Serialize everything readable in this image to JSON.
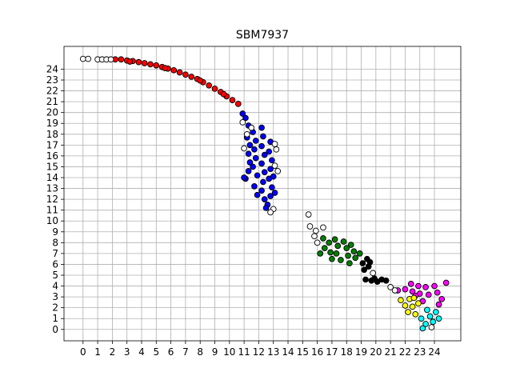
{
  "chart_data": {
    "type": "scatter",
    "title": "SBM7937",
    "xlabel": "",
    "ylabel": "",
    "xlim": [
      -1.3,
      25.8
    ],
    "ylim": [
      -1.05,
      26.1
    ],
    "xticks": [
      0,
      1,
      2,
      3,
      4,
      5,
      6,
      7,
      8,
      9,
      10,
      11,
      12,
      13,
      14,
      15,
      16,
      17,
      18,
      19,
      20,
      21,
      22,
      23,
      24
    ],
    "yticks": [
      0,
      1,
      2,
      3,
      4,
      5,
      6,
      7,
      8,
      9,
      10,
      11,
      12,
      13,
      14,
      15,
      16,
      17,
      18,
      19,
      20,
      21,
      22,
      23,
      24
    ],
    "grid": true,
    "legend": "none",
    "marker": "circle",
    "series": [
      {
        "color": "#ff0000",
        "points": [
          [
            2.2,
            24.9
          ],
          [
            2.6,
            24.9
          ],
          [
            3.0,
            24.8
          ],
          [
            3.4,
            24.75
          ],
          [
            3.8,
            24.65
          ],
          [
            4.2,
            24.55
          ],
          [
            4.6,
            24.45
          ],
          [
            5.0,
            24.35
          ],
          [
            5.4,
            24.2
          ],
          [
            5.8,
            24.05
          ],
          [
            6.2,
            23.9
          ],
          [
            6.6,
            23.7
          ],
          [
            7.0,
            23.5
          ],
          [
            7.4,
            23.3
          ],
          [
            7.8,
            23.1
          ],
          [
            8.2,
            22.8
          ],
          [
            8.6,
            22.5
          ],
          [
            9.0,
            22.2
          ],
          [
            9.4,
            21.9
          ],
          [
            9.8,
            21.5
          ],
          [
            10.2,
            21.15
          ],
          [
            10.6,
            20.8
          ],
          [
            3.2,
            24.7
          ],
          [
            5.6,
            24.1
          ],
          [
            8.0,
            22.95
          ],
          [
            9.6,
            21.7
          ]
        ]
      },
      {
        "color": "#0000ff",
        "points": [
          [
            11.1,
            19.5
          ],
          [
            11.3,
            18.8
          ],
          [
            11.2,
            17.7
          ],
          [
            11.4,
            17.0
          ],
          [
            11.3,
            16.2
          ],
          [
            11.4,
            15.4
          ],
          [
            11.3,
            14.6
          ],
          [
            11.1,
            13.9
          ],
          [
            11.6,
            18.2
          ],
          [
            11.8,
            17.4
          ],
          [
            11.7,
            16.6
          ],
          [
            11.8,
            15.8
          ],
          [
            11.6,
            15.0
          ],
          [
            11.9,
            14.2
          ],
          [
            11.7,
            13.2
          ],
          [
            11.9,
            12.4
          ],
          [
            12.2,
            18.6
          ],
          [
            12.3,
            17.8
          ],
          [
            12.2,
            16.9
          ],
          [
            12.4,
            16.1
          ],
          [
            12.2,
            15.3
          ],
          [
            12.4,
            14.5
          ],
          [
            12.3,
            13.6
          ],
          [
            12.2,
            12.8
          ],
          [
            12.4,
            12.0
          ],
          [
            12.8,
            17.3
          ],
          [
            12.7,
            16.4
          ],
          [
            12.9,
            15.6
          ],
          [
            12.8,
            14.8
          ],
          [
            12.7,
            13.9
          ],
          [
            12.9,
            13.1
          ],
          [
            12.8,
            12.3
          ],
          [
            12.6,
            11.5
          ],
          [
            13.1,
            12.6
          ],
          [
            13.0,
            14.1
          ],
          [
            11.0,
            14.0
          ],
          [
            10.9,
            19.9
          ],
          [
            12.5,
            11.2
          ]
        ]
      },
      {
        "color": "#008000",
        "points": [
          [
            16.4,
            8.4
          ],
          [
            16.8,
            8.0
          ],
          [
            16.5,
            7.5
          ],
          [
            16.9,
            7.1
          ],
          [
            17.2,
            8.3
          ],
          [
            17.4,
            7.7
          ],
          [
            17.3,
            7.0
          ],
          [
            17.6,
            6.4
          ],
          [
            17.8,
            8.1
          ],
          [
            18.0,
            7.5
          ],
          [
            18.1,
            6.8
          ],
          [
            18.3,
            7.8
          ],
          [
            18.5,
            7.2
          ],
          [
            18.6,
            6.6
          ],
          [
            18.9,
            7.0
          ],
          [
            16.2,
            7.0
          ],
          [
            17.0,
            6.5
          ],
          [
            18.2,
            6.1
          ]
        ]
      },
      {
        "color": "#000000",
        "points": [
          [
            19.1,
            6.1
          ],
          [
            19.5,
            5.8
          ],
          [
            19.2,
            5.5
          ],
          [
            19.6,
            6.2
          ],
          [
            19.3,
            4.6
          ],
          [
            19.7,
            4.5
          ],
          [
            20.1,
            4.4
          ],
          [
            20.4,
            4.6
          ],
          [
            20.7,
            4.5
          ],
          [
            19.9,
            4.7
          ],
          [
            19.4,
            6.5
          ]
        ]
      },
      {
        "color": "#ff00ff",
        "points": [
          [
            21.5,
            3.6
          ],
          [
            22.0,
            3.7
          ],
          [
            22.4,
            4.2
          ],
          [
            22.5,
            3.5
          ],
          [
            22.9,
            4.0
          ],
          [
            23.0,
            3.3
          ],
          [
            23.4,
            3.9
          ],
          [
            23.6,
            3.2
          ],
          [
            24.0,
            4.0
          ],
          [
            24.2,
            3.4
          ],
          [
            24.5,
            2.8
          ],
          [
            24.8,
            4.3
          ],
          [
            23.2,
            2.6
          ],
          [
            24.3,
            2.3
          ],
          [
            22.7,
            3.1
          ]
        ]
      },
      {
        "color": "#ffff00",
        "points": [
          [
            21.7,
            2.7
          ],
          [
            22.0,
            2.2
          ],
          [
            22.3,
            2.8
          ],
          [
            22.5,
            2.1
          ],
          [
            22.2,
            1.6
          ],
          [
            22.7,
            1.4
          ],
          [
            22.9,
            2.4
          ],
          [
            22.6,
            2.9
          ]
        ]
      },
      {
        "color": "#00ffff",
        "points": [
          [
            23.1,
            1.0
          ],
          [
            23.4,
            0.5
          ],
          [
            23.7,
            1.2
          ],
          [
            23.9,
            0.7
          ],
          [
            24.1,
            1.6
          ],
          [
            24.3,
            1.0
          ],
          [
            23.5,
            1.8
          ],
          [
            23.2,
            0.1
          ]
        ]
      },
      {
        "color": "#ffffff",
        "points": [
          [
            0.0,
            24.95
          ],
          [
            0.35,
            24.95
          ],
          [
            1.0,
            24.9
          ],
          [
            1.3,
            24.9
          ],
          [
            1.6,
            24.9
          ],
          [
            1.9,
            24.9
          ],
          [
            11.0,
            16.7
          ],
          [
            11.2,
            18.0
          ],
          [
            11.5,
            18.6
          ],
          [
            13.1,
            17.1
          ],
          [
            13.2,
            16.6
          ],
          [
            13.1,
            15.1
          ],
          [
            13.3,
            14.6
          ],
          [
            13.0,
            11.1
          ],
          [
            12.8,
            10.8
          ],
          [
            10.9,
            19.1
          ],
          [
            15.4,
            10.6
          ],
          [
            15.5,
            9.5
          ],
          [
            15.9,
            9.1
          ],
          [
            15.8,
            8.6
          ],
          [
            16.4,
            9.4
          ],
          [
            16.0,
            8.0
          ],
          [
            19.8,
            5.2
          ],
          [
            21.0,
            3.9
          ],
          [
            21.3,
            3.6
          ],
          [
            23.8,
            0.2
          ]
        ]
      }
    ]
  }
}
